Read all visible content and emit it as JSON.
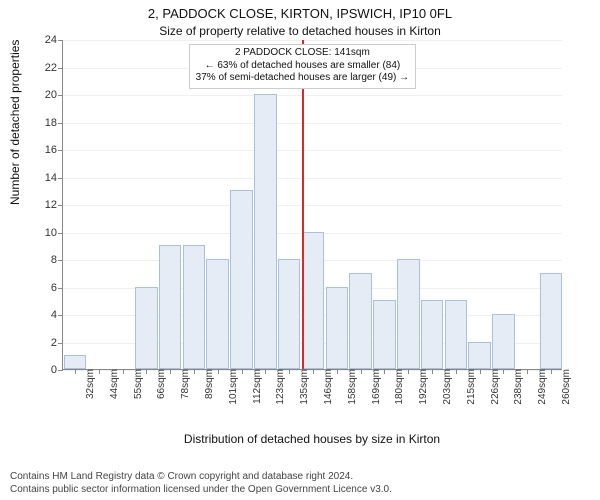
{
  "title_main": "2, PADDOCK CLOSE, KIRTON, IPSWICH, IP10 0FL",
  "title_sub": "Size of property relative to detached houses in Kirton",
  "ylabel": "Number of detached properties",
  "xlabel": "Distribution of detached houses by size in Kirton",
  "footer_line1": "Contains HM Land Registry data © Crown copyright and database right 2024.",
  "footer_line2": "Contains public sector information licensed under the Open Government Licence v3.0.",
  "histogram": {
    "type": "histogram",
    "ylim": [
      0,
      24
    ],
    "yticks": [
      0,
      2,
      4,
      6,
      8,
      10,
      12,
      14,
      16,
      18,
      20,
      22,
      24
    ],
    "categories": [
      "32sqm",
      "44sqm",
      "55sqm",
      "66sqm",
      "78sqm",
      "89sqm",
      "101sqm",
      "112sqm",
      "123sqm",
      "135sqm",
      "146sqm",
      "158sqm",
      "169sqm",
      "180sqm",
      "192sqm",
      "203sqm",
      "215sqm",
      "226sqm",
      "238sqm",
      "249sqm",
      "260sqm"
    ],
    "values": [
      1,
      0,
      0,
      6,
      9,
      9,
      8,
      13,
      20,
      8,
      10,
      6,
      7,
      5,
      8,
      5,
      5,
      2,
      4,
      0,
      7
    ],
    "bar_fill": "#e5ecf6",
    "bar_stroke": "#aac1de",
    "reference_line_color": "#d82a2a",
    "infobox": {
      "line1": "2 PADDOCK CLOSE: 141sqm",
      "line2": "← 63% of detached houses are smaller (84)",
      "line3": "37% of semi-detached houses are larger (49) →"
    },
    "reference_value": "141sqm",
    "plot_background": "#ffffff"
  },
  "typography": {
    "title_fontsize": 13,
    "subtitle_fontsize": 12,
    "axis_label_fontsize": 12,
    "tick_fontsize": 11,
    "xtick_fontsize": 10,
    "infobox_fontsize": 10,
    "footer_fontsize": 10
  }
}
